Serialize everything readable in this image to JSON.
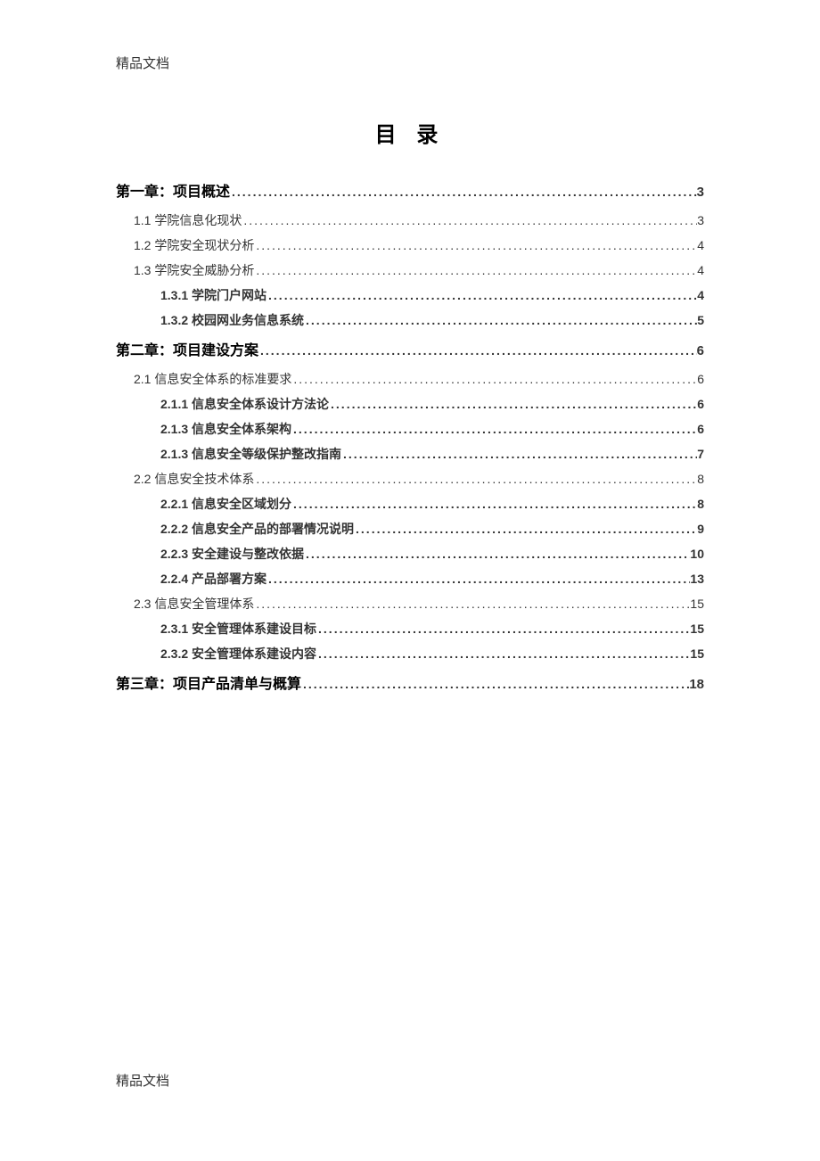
{
  "header": "精品文档",
  "footer": "精品文档",
  "title": "目 录",
  "toc": [
    {
      "level": "chapter",
      "label": "第一章：项目概述",
      "page": "3"
    },
    {
      "level": "level2",
      "label": "1.1 学院信息化现状",
      "page": "3"
    },
    {
      "level": "level2",
      "label": "1.2 学院安全现状分析",
      "page": "4"
    },
    {
      "level": "level2",
      "label": "1.3 学院安全威胁分析",
      "page": "4"
    },
    {
      "level": "level3",
      "label": "1.3.1 学院门户网站",
      "page": "4"
    },
    {
      "level": "level3",
      "label": "1.3.2 校园网业务信息系统",
      "page": "5"
    },
    {
      "level": "chapter",
      "label": "第二章：项目建设方案",
      "page": "6"
    },
    {
      "level": "level2",
      "label": "2.1 信息安全体系的标准要求",
      "page": "6"
    },
    {
      "level": "level3",
      "label": "2.1.1 信息安全体系设计方法论",
      "page": "6"
    },
    {
      "level": "level3",
      "label": "2.1.3 信息安全体系架构",
      "page": "6"
    },
    {
      "level": "level3",
      "label": "2.1.3 信息安全等级保护整改指南",
      "page": "7"
    },
    {
      "level": "level2",
      "label": "2.2 信息安全技术体系",
      "page": "8"
    },
    {
      "level": "level3",
      "label": "2.2.1 信息安全区域划分",
      "page": "8"
    },
    {
      "level": "level3",
      "label": "2.2.2 信息安全产品的部署情况说明",
      "page": "9"
    },
    {
      "level": "level3",
      "label": "2.2.3 安全建设与整改依据",
      "page": "10"
    },
    {
      "level": "level3",
      "label": "2.2.4 产品部署方案",
      "page": "13"
    },
    {
      "level": "level2",
      "label": "2.3 信息安全管理体系",
      "page": "15"
    },
    {
      "level": "level3",
      "label": "2.3.1 安全管理体系建设目标",
      "page": "15"
    },
    {
      "level": "level3",
      "label": "2.3.2 安全管理体系建设内容",
      "page": "15"
    },
    {
      "level": "chapter",
      "label": "第三章：项目产品清单与概算",
      "page": "18"
    }
  ],
  "colors": {
    "background": "#ffffff",
    "text": "#333333",
    "chapter_text": "#000000"
  },
  "typography": {
    "title_fontsize": 24,
    "chapter_fontsize": 16,
    "entry_fontsize": 14,
    "header_fontsize": 15
  }
}
